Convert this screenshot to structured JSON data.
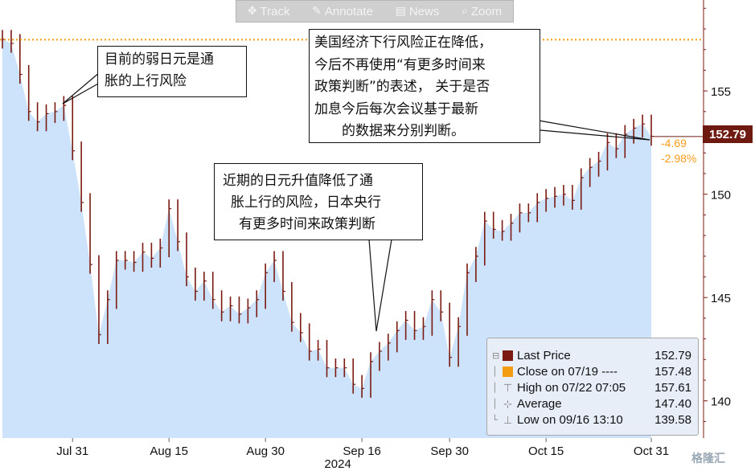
{
  "toolbar": {
    "track": "Track",
    "annotate": "Annotate",
    "news": "News",
    "zoom": "Zoom",
    "icons": {
      "track": "crosshair-icon",
      "annotate": "pencil-icon",
      "news": "newspaper-icon",
      "zoom": "magnifier-icon"
    }
  },
  "annotations": {
    "a1_line1": "目前的弱日元是通",
    "a1_line2": "胀的上行风险",
    "a2_line1": "近期的日元升值降低了通",
    "a2_line2": "胀上行的风险，日本央行",
    "a2_line3": "有更多时间来政策判断",
    "a3_line1": "美国经济下行风险正在降低，",
    "a3_line2": "今后不再使用“有更多时间来",
    "a3_line3": "政策判断”的表述，  关于是否",
    "a3_line4": "加息今后每次会议基于最新",
    "a3_line5": "的数据来分别判断。"
  },
  "price_label": "152.79",
  "change_abs": "-4.69",
  "change_pct": "-2.98%",
  "legend": {
    "rows": [
      {
        "label": "Last Price",
        "value": "152.79"
      },
      {
        "label": "Close on 07/19 ----",
        "value": "157.48"
      },
      {
        "label": "High on 07/22 07:05",
        "value": "157.61"
      },
      {
        "label": "Average",
        "value": "147.40"
      },
      {
        "label": "Low on 09/16 13:10",
        "value": "139.58"
      }
    ],
    "colors": {
      "last": "#7a1a10",
      "close": "#f39c12"
    }
  },
  "watermark": "格隆汇",
  "colors": {
    "area": "#cce3fb",
    "bar": "#7a1a10",
    "dotted": "#f39c12",
    "axis": "#7a1a10"
  },
  "chart_data": {
    "type": "area",
    "x": [
      "07-19",
      "07-22",
      "07-23",
      "07-24",
      "07-25",
      "07-26",
      "07-29",
      "07-30",
      "07-31",
      "08-01",
      "08-02",
      "08-05",
      "08-06",
      "08-07",
      "08-08",
      "08-09",
      "08-12",
      "08-13",
      "08-14",
      "08-15",
      "08-16",
      "08-19",
      "08-20",
      "08-21",
      "08-22",
      "08-23",
      "08-26",
      "08-27",
      "08-28",
      "08-29",
      "08-30",
      "09-02",
      "09-03",
      "09-04",
      "09-05",
      "09-06",
      "09-09",
      "09-10",
      "09-11",
      "09-12",
      "09-13",
      "09-16",
      "09-17",
      "09-18",
      "09-19",
      "09-20",
      "09-23",
      "09-24",
      "09-25",
      "09-26",
      "09-27",
      "09-30",
      "10-01",
      "10-02",
      "10-03",
      "10-04",
      "10-07",
      "10-08",
      "10-09",
      "10-10",
      "10-11",
      "10-14",
      "10-15",
      "10-16",
      "10-17",
      "10-18",
      "10-21",
      "10-22",
      "10-23",
      "10-24",
      "10-25",
      "10-28",
      "10-29",
      "10-30",
      "10-31"
    ],
    "y": [
      157.5,
      157.3,
      155.8,
      154.0,
      153.5,
      153.9,
      154.0,
      154.3,
      152.1,
      149.6,
      146.6,
      143.2,
      144.9,
      146.8,
      146.8,
      146.7,
      147.2,
      146.9,
      147.4,
      149.3,
      147.7,
      146.0,
      145.3,
      145.8,
      144.9,
      144.3,
      144.6,
      144.2,
      144.5,
      144.9,
      146.2,
      146.8,
      145.3,
      143.8,
      143.3,
      142.4,
      142.5,
      141.6,
      141.6,
      141.6,
      140.8,
      140.6,
      141.9,
      142.4,
      142.8,
      143.4,
      143.9,
      143.4,
      143.6,
      144.9,
      144.3,
      142.1,
      143.6,
      146.2,
      147.0,
      148.7,
      148.3,
      148.2,
      148.6,
      149.1,
      149.1,
      149.6,
      149.8,
      149.9,
      150.0,
      149.7,
      150.8,
      151.3,
      151.6,
      152.5,
      152.2,
      152.9,
      153.2,
      153.4,
      152.8
    ],
    "ylim": [
      138.2,
      159.4
    ],
    "yticks": [
      140,
      145,
      150,
      155
    ],
    "xticks": [
      {
        "x": "07-31",
        "label": "Jul 31"
      },
      {
        "x": "08-15",
        "label": "Aug 15"
      },
      {
        "x": "08-30",
        "label": "Aug 30"
      },
      {
        "x": "09-16",
        "label": "Sep 16"
      },
      {
        "x": "09-30",
        "label": "Sep 30"
      },
      {
        "x": "10-15",
        "label": "Oct 15"
      },
      {
        "x": "10-31",
        "label": "Oct 31"
      }
    ],
    "year_label": "2024",
    "reference_line": 157.48,
    "last": 152.79
  }
}
